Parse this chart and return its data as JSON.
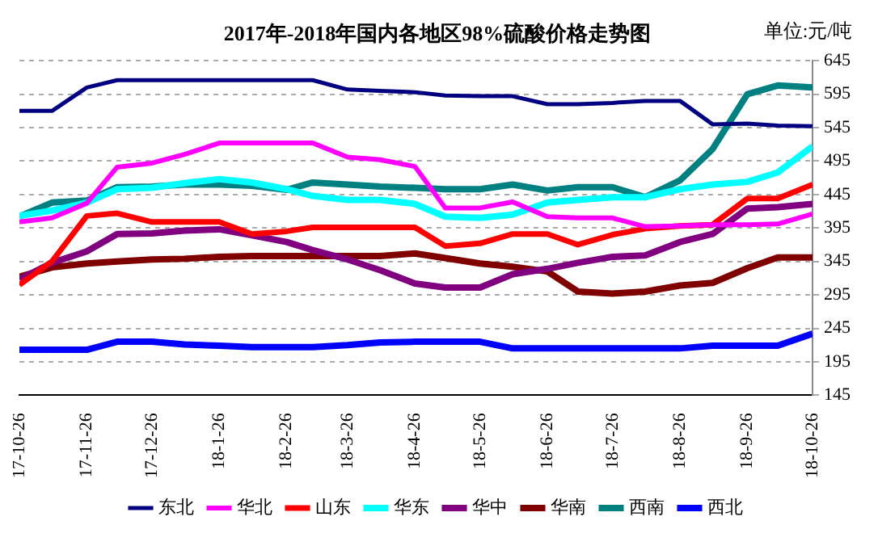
{
  "chart_data": {
    "type": "line",
    "title": "2017年-2018年国内各地区98%硫酸价格走势图",
    "annotations": [
      "单位:元/吨"
    ],
    "x": [
      "2017-10-26",
      "2017-11-10",
      "2017-11-26",
      "2017-12-10",
      "2017-12-26",
      "2018-01-10",
      "2018-01-26",
      "2018-02-10",
      "2018-02-26",
      "2018-03-10",
      "2018-03-26",
      "2018-04-10",
      "2018-04-26",
      "2018-05-10",
      "2018-05-26",
      "2018-06-10",
      "2018-06-26",
      "2018-07-10",
      "2018-07-26",
      "2018-08-10",
      "2018-08-26",
      "2018-09-10",
      "2018-09-26",
      "2018-10-10",
      "2018-10-26"
    ],
    "series": [
      {
        "name": "东北",
        "color": "#000080",
        "values": [
          570,
          570,
          605,
          616,
          616,
          616,
          616,
          616,
          616,
          616,
          602,
          600,
          598,
          593,
          592,
          592,
          580,
          580,
          582,
          585,
          585,
          550,
          551,
          548,
          547
        ]
      },
      {
        "name": "华北",
        "color": "#ff00ff",
        "values": [
          404,
          410,
          432,
          486,
          492,
          505,
          522,
          522,
          522,
          522,
          501,
          497,
          487,
          425,
          425,
          434,
          412,
          410,
          410,
          397,
          398,
          400,
          400,
          401,
          416
        ]
      },
      {
        "name": "山东",
        "color": "#ff0000",
        "values": [
          310,
          345,
          413,
          417,
          404,
          404,
          404,
          386,
          390,
          396,
          396,
          396,
          396,
          368,
          372,
          386,
          386,
          370,
          385,
          394,
          398,
          400,
          439,
          439,
          460
        ]
      },
      {
        "name": "华东",
        "color": "#00ffff",
        "values": [
          413,
          421,
          433,
          453,
          455,
          462,
          468,
          463,
          453,
          443,
          437,
          437,
          431,
          412,
          410,
          415,
          433,
          437,
          441,
          441,
          453,
          460,
          464,
          478,
          517
        ]
      },
      {
        "name": "华中",
        "color": "#800080",
        "values": [
          318,
          343,
          360,
          386,
          387,
          391,
          393,
          384,
          374,
          362,
          348,
          332,
          312,
          306,
          306,
          326,
          334,
          343,
          352,
          354,
          374,
          386,
          424,
          426,
          431
        ]
      },
      {
        "name": "华南",
        "color": "#800000",
        "values": [
          322,
          336,
          342,
          345,
          348,
          349,
          352,
          353,
          353,
          353,
          353,
          353,
          357,
          350,
          342,
          337,
          330,
          300,
          297,
          300,
          309,
          313,
          335,
          351,
          351
        ]
      },
      {
        "name": "西南",
        "color": "#008080",
        "values": [
          412,
          433,
          436,
          456,
          457,
          460,
          460,
          458,
          452,
          463,
          460,
          457,
          455,
          453,
          453,
          460,
          451,
          456,
          456,
          441,
          466,
          513,
          595,
          608,
          605
        ]
      },
      {
        "name": "西北",
        "color": "#0000ff",
        "values": [
          213,
          213,
          213,
          225,
          225,
          221,
          219,
          217,
          217,
          217,
          220,
          224,
          225,
          225,
          225,
          215,
          215,
          215,
          215,
          215,
          215,
          219,
          219,
          219,
          237
        ]
      }
    ],
    "xlim": [
      "2017-10-26",
      "2018-10-26"
    ],
    "xticks": [
      {
        "value": "2017-10-26",
        "label": "17-10-26"
      },
      {
        "value": "2017-11-26",
        "label": "17-11-26"
      },
      {
        "value": "2017-12-26",
        "label": "17-12-26"
      },
      {
        "value": "2018-01-26",
        "label": "18-1-26"
      },
      {
        "value": "2018-02-26",
        "label": "18-2-26"
      },
      {
        "value": "2018-03-26",
        "label": "18-3-26"
      },
      {
        "value": "2018-04-26",
        "label": "18-4-26"
      },
      {
        "value": "2018-05-26",
        "label": "18-5-26"
      },
      {
        "value": "2018-06-26",
        "label": "18-6-26"
      },
      {
        "value": "2018-07-26",
        "label": "18-7-26"
      },
      {
        "value": "2018-08-26",
        "label": "18-8-26"
      },
      {
        "value": "2018-09-26",
        "label": "18-9-26"
      },
      {
        "value": "2018-10-26",
        "label": "18-10-26"
      }
    ],
    "ylim": [
      145,
      645
    ],
    "yticks": [
      145,
      195,
      245,
      295,
      345,
      395,
      445,
      495,
      545,
      595,
      645
    ],
    "grid": "y",
    "legend": "bottom",
    "marker": "none",
    "line_style": "solid"
  }
}
